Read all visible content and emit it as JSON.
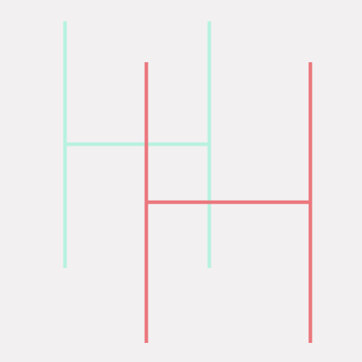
{
  "canvas": {
    "background": "#f2f0f1"
  },
  "shapes": [
    {
      "name": "mint-h-glyph",
      "letter": "H",
      "color": "#b8f2e0"
    },
    {
      "name": "coral-h-glyph",
      "letter": "H",
      "color": "#ea777d"
    }
  ]
}
